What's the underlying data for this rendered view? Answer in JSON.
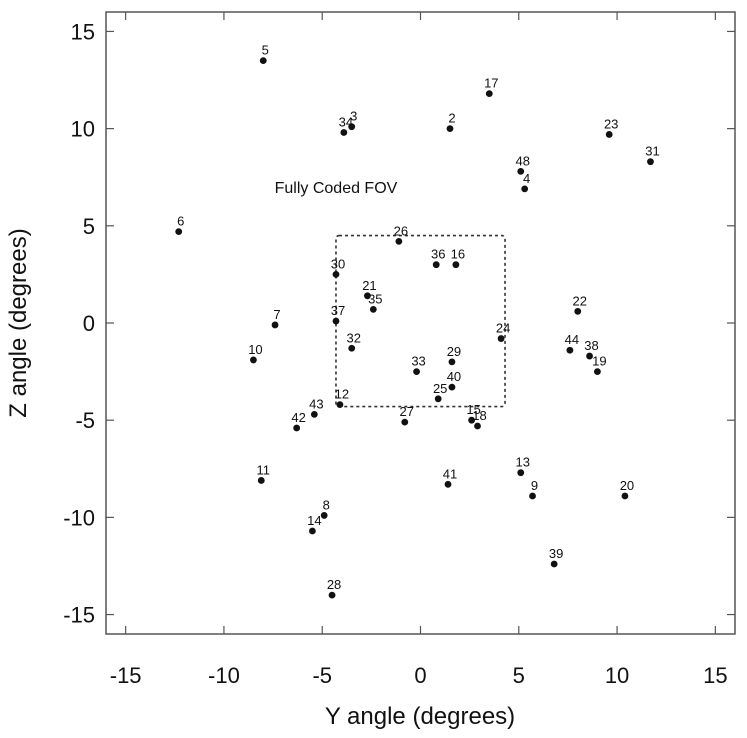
{
  "chart_data": {
    "type": "scatter",
    "title": "",
    "xlabel": "Y angle (degrees)",
    "ylabel": "Z angle (degrees)",
    "xlim": [
      -16,
      16
    ],
    "ylim": [
      -16,
      16
    ],
    "x_ticks": [
      -15,
      -10,
      -5,
      0,
      5,
      10,
      15
    ],
    "y_ticks": [
      15,
      10,
      5,
      0,
      -5,
      -10,
      -15
    ],
    "grid": false,
    "legend": "none",
    "points": [
      {
        "label": "2",
        "x": 1.5,
        "y": 10.0
      },
      {
        "label": "3",
        "x": -3.5,
        "y": 10.1
      },
      {
        "label": "4",
        "x": 5.3,
        "y": 6.9
      },
      {
        "label": "5",
        "x": -8.0,
        "y": 13.5
      },
      {
        "label": "6",
        "x": -12.3,
        "y": 4.7
      },
      {
        "label": "7",
        "x": -7.4,
        "y": -0.1
      },
      {
        "label": "8",
        "x": -4.9,
        "y": -9.9
      },
      {
        "label": "9",
        "x": 5.7,
        "y": -8.9
      },
      {
        "label": "10",
        "x": -8.5,
        "y": -1.9
      },
      {
        "label": "11",
        "x": -8.1,
        "y": -8.1
      },
      {
        "label": "12",
        "x": -4.1,
        "y": -4.2
      },
      {
        "label": "13",
        "x": 5.1,
        "y": -7.7
      },
      {
        "label": "14",
        "x": -5.5,
        "y": -10.7
      },
      {
        "label": "15",
        "x": 2.6,
        "y": -5.0
      },
      {
        "label": "16",
        "x": 1.8,
        "y": 3.0
      },
      {
        "label": "17",
        "x": 3.5,
        "y": 11.8
      },
      {
        "label": "18",
        "x": 2.9,
        "y": -5.3
      },
      {
        "label": "19",
        "x": 9.0,
        "y": -2.5
      },
      {
        "label": "20",
        "x": 10.4,
        "y": -8.9
      },
      {
        "label": "21",
        "x": -2.7,
        "y": 1.4
      },
      {
        "label": "22",
        "x": 8.0,
        "y": 0.6
      },
      {
        "label": "23",
        "x": 9.6,
        "y": 9.7
      },
      {
        "label": "24",
        "x": 4.1,
        "y": -0.8
      },
      {
        "label": "25",
        "x": 0.9,
        "y": -3.9
      },
      {
        "label": "26",
        "x": -1.1,
        "y": 4.2
      },
      {
        "label": "27",
        "x": -0.8,
        "y": -5.1
      },
      {
        "label": "28",
        "x": -4.5,
        "y": -14.0
      },
      {
        "label": "29",
        "x": 1.6,
        "y": -2.0
      },
      {
        "label": "30",
        "x": -4.3,
        "y": 2.5
      },
      {
        "label": "31",
        "x": 11.7,
        "y": 8.3
      },
      {
        "label": "32",
        "x": -3.5,
        "y": -1.3
      },
      {
        "label": "33",
        "x": -0.2,
        "y": -2.5
      },
      {
        "label": "34",
        "x": -3.9,
        "y": 9.8
      },
      {
        "label": "35",
        "x": -2.4,
        "y": 0.7
      },
      {
        "label": "36",
        "x": 0.8,
        "y": 3.0
      },
      {
        "label": "37",
        "x": -4.3,
        "y": 0.1
      },
      {
        "label": "38",
        "x": 8.6,
        "y": -1.7
      },
      {
        "label": "39",
        "x": 6.8,
        "y": -12.4
      },
      {
        "label": "40",
        "x": 1.6,
        "y": -3.3
      },
      {
        "label": "41",
        "x": 1.4,
        "y": -8.3
      },
      {
        "label": "42",
        "x": -6.3,
        "y": -5.4
      },
      {
        "label": "43",
        "x": -5.4,
        "y": -4.7
      },
      {
        "label": "44",
        "x": 7.6,
        "y": -1.4
      },
      {
        "label": "48",
        "x": 5.1,
        "y": 7.8
      }
    ],
    "annotations": [
      {
        "text": "Fully Coded FOV",
        "x": -4.3,
        "y": 7.0
      }
    ],
    "region": {
      "name": "Fully Coded FOV",
      "y_range": [
        -4.3,
        4.3
      ],
      "z_range": [
        -4.3,
        4.5
      ]
    }
  }
}
